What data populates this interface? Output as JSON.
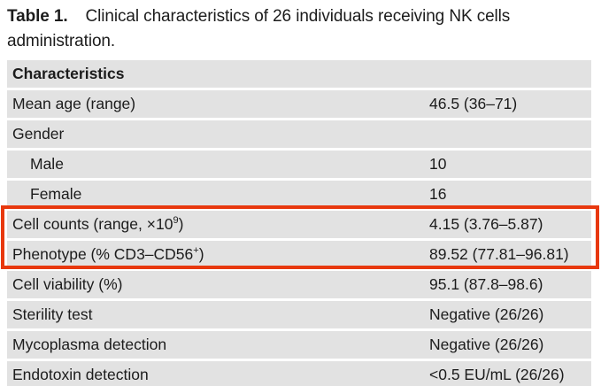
{
  "title": {
    "label": "Table 1.",
    "text": "Clinical characteristics of 26 individuals receiving NK cells administration."
  },
  "colors": {
    "row_background": "#e2e2e2",
    "highlight_border": "#e8380e",
    "text": "#1c1c1c"
  },
  "table": {
    "header": "Characteristics",
    "rows": [
      {
        "label": "Mean age (range)",
        "value": "46.5 (36–71)"
      },
      {
        "label": "Gender",
        "value": ""
      },
      {
        "label": "Male",
        "value": "10",
        "indent": true
      },
      {
        "label": "Female",
        "value": "16",
        "indent": true
      },
      {
        "label_pre": "Cell counts (range, ×10",
        "label_sup": "9",
        "label_post": ")",
        "value": "4.15 (3.76–5.87)",
        "highlighted": true
      },
      {
        "label_pre": "Phenotype (% CD3–CD56",
        "label_sup": "+",
        "label_post": ")",
        "value": "89.52 (77.81–96.81)",
        "highlighted": true
      },
      {
        "label": "Cell viability (%)",
        "value": "95.1 (87.8–98.6)"
      },
      {
        "label": "Sterility test",
        "value": "Negative (26/26)"
      },
      {
        "label": "Mycoplasma detection",
        "value": "Negative (26/26)"
      },
      {
        "label": "Endotoxin detection",
        "value": "<0.5 EU/mL (26/26)"
      }
    ]
  }
}
